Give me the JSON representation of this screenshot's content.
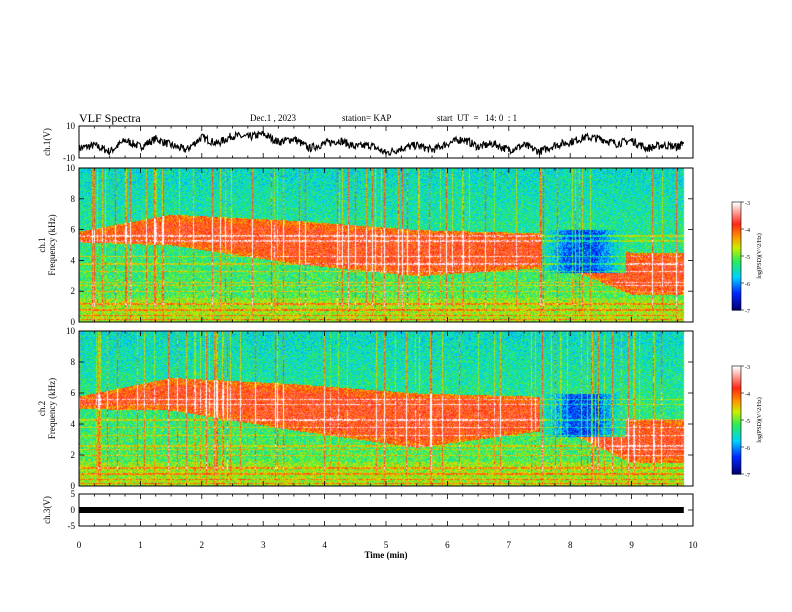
{
  "header": {
    "title": "VLF Spectra",
    "date": "Dec.1 , 2023",
    "station": "station= KAP",
    "start_ut": "start  UT  =   14: 0  : 1"
  },
  "chart_data": [
    {
      "type": "line",
      "panel": "ch1-waveform",
      "ylabel": "ch.1(V)",
      "ylim": [
        -10,
        10
      ],
      "yticks": [
        "10",
        "-10"
      ],
      "x": [
        0,
        0.25,
        0.5,
        0.75,
        1,
        1.25,
        1.5,
        1.75,
        2,
        2.25,
        2.5,
        2.75,
        3,
        3.25,
        3.5,
        3.75,
        4,
        4.25,
        4.5,
        4.75,
        5,
        5.25,
        5.5,
        5.75,
        6,
        6.25,
        6.5,
        6.75,
        7,
        7.25,
        7.5,
        7.75,
        8,
        8.25,
        8.5,
        8.75,
        9,
        9.25,
        9.5,
        9.75,
        9.85
      ],
      "values": [
        -4,
        -2,
        -6,
        1,
        -3,
        2,
        -2,
        -5,
        3,
        -1,
        4,
        3,
        5,
        0,
        2,
        -4,
        -1,
        1,
        -3,
        -2,
        -7,
        -4,
        -2,
        -5,
        -1,
        2,
        -3,
        -1,
        -5,
        -2,
        -6,
        -2,
        0,
        3,
        2,
        -1,
        1,
        -4,
        -2,
        -3,
        -1
      ]
    },
    {
      "type": "heatmap",
      "panel": "ch1-spectrogram",
      "ylabel": "ch.1\nFrequency (kHz)",
      "ylim": [
        0,
        10
      ],
      "yticks": [
        "0",
        "2",
        "4",
        "6",
        "8",
        "10"
      ],
      "colorbar": {
        "label": "log(PSD)(V^2/Hz)",
        "range": [
          -7,
          -3
        ],
        "ticks": [
          "-3",
          "-4",
          "-5",
          "-6",
          "-7"
        ]
      },
      "x_min": [
        0,
        1.5,
        3.5,
        5.5,
        7.4,
        8,
        9
      ],
      "band_low_khz": [
        5.2,
        5.0,
        3.8,
        3.0,
        3.5,
        3.4,
        1.8
      ],
      "band_high_khz": [
        5.9,
        7.0,
        6.6,
        6.0,
        5.8,
        5.8,
        4.5
      ],
      "quiet_band_khz": [
        3.2,
        6.0
      ]
    },
    {
      "type": "heatmap",
      "panel": "ch2-spectrogram",
      "ylabel": "ch.2\nFrequency (kHz)",
      "ylim": [
        0,
        10
      ],
      "yticks": [
        "0",
        "2",
        "4",
        "6",
        "8",
        "10"
      ],
      "colorbar": {
        "label": "log(PSD)(V^2/Hz)",
        "range": [
          -7,
          -3
        ],
        "ticks": [
          "-3",
          "-4",
          "-5",
          "-6",
          "-7"
        ]
      },
      "x_min": [
        0,
        1.5,
        3.5,
        5.5,
        7.4,
        8,
        9
      ],
      "band_low_khz": [
        5.0,
        4.9,
        3.6,
        2.5,
        3.5,
        3.4,
        1.5
      ],
      "band_high_khz": [
        5.8,
        7.0,
        6.6,
        6.0,
        5.8,
        5.8,
        4.3
      ],
      "quiet_band_khz": [
        3.2,
        6.0
      ]
    },
    {
      "type": "line",
      "panel": "ch3-signal",
      "ylabel": "ch.3(V)",
      "ylim": [
        -5,
        5
      ],
      "yticks": [
        "5",
        "0",
        "-5"
      ],
      "x": [
        0,
        9.85
      ],
      "values": [
        0,
        0
      ]
    }
  ],
  "time_axis": {
    "xlabel": "Time (min)",
    "xlim": [
      0,
      10
    ],
    "ticks": [
      "0",
      "1",
      "2",
      "3",
      "4",
      "5",
      "6",
      "7",
      "8",
      "9",
      "10"
    ]
  }
}
